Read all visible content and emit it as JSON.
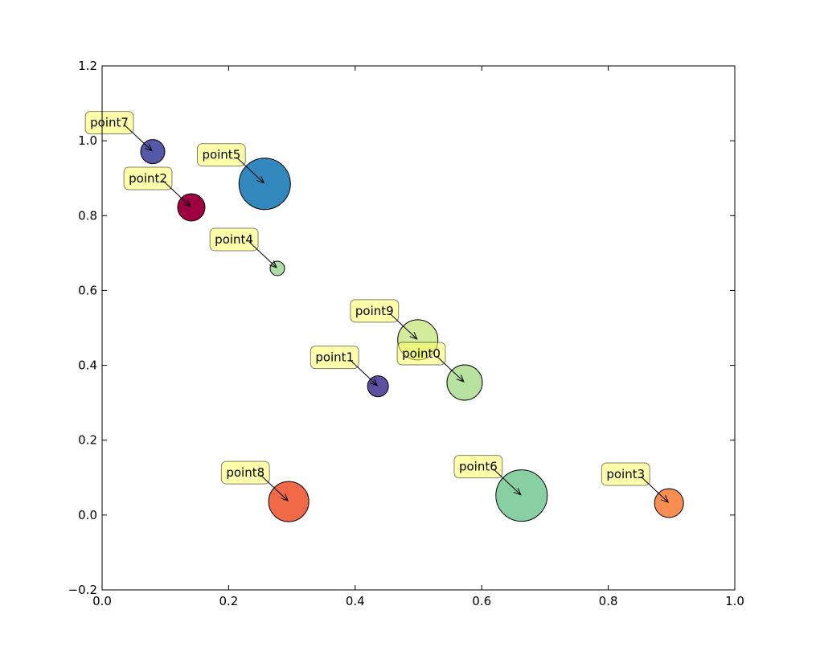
{
  "chart_data": {
    "type": "scatter",
    "title": "",
    "xlabel": "",
    "ylabel": "",
    "xlim": [
      0.0,
      1.0
    ],
    "ylim": [
      -0.2,
      1.2
    ],
    "xticks": [
      "0.0",
      "0.2",
      "0.4",
      "0.6",
      "0.8",
      "1.0"
    ],
    "yticks": [
      "−0.2",
      "0.0",
      "0.2",
      "0.4",
      "0.6",
      "0.8",
      "1.0",
      "1.2"
    ],
    "grid": false,
    "annotation_box_color": "#ffff66",
    "points": [
      {
        "label": "point0",
        "x": 0.573,
        "y": 0.354,
        "size": 22,
        "color": "#b9e2a1"
      },
      {
        "label": "point1",
        "x": 0.436,
        "y": 0.344,
        "size": 13,
        "color": "#5e50a1"
      },
      {
        "label": "point2",
        "x": 0.141,
        "y": 0.822,
        "size": 17,
        "color": "#9e0142"
      },
      {
        "label": "point3",
        "x": 0.896,
        "y": 0.032,
        "size": 18,
        "color": "#f98e52"
      },
      {
        "label": "point4",
        "x": 0.277,
        "y": 0.659,
        "size": 9,
        "color": "#acdda4"
      },
      {
        "label": "point5",
        "x": 0.257,
        "y": 0.885,
        "size": 32,
        "color": "#3288bd"
      },
      {
        "label": "point6",
        "x": 0.663,
        "y": 0.052,
        "size": 32,
        "color": "#88d0a4"
      },
      {
        "label": "point7",
        "x": 0.08,
        "y": 0.971,
        "size": 15,
        "color": "#5458a6"
      },
      {
        "label": "point8",
        "x": 0.295,
        "y": 0.036,
        "size": 25,
        "color": "#f06a47"
      },
      {
        "label": "point9",
        "x": 0.499,
        "y": 0.468,
        "size": 25,
        "color": "#d3ec9c"
      }
    ]
  }
}
